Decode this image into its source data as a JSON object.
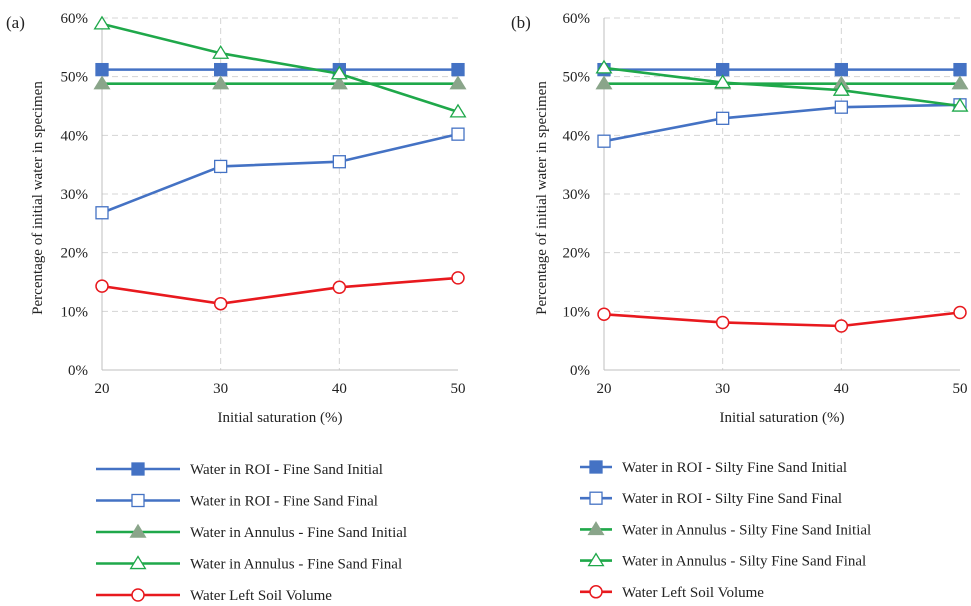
{
  "chart_data": [
    {
      "type": "line",
      "panel_label": "(a)",
      "xlabel": "Initial saturation (%)",
      "ylabel": "Percentage of initial water in specimen",
      "x": [
        20,
        30,
        40,
        50
      ],
      "xticks": [
        "20",
        "30",
        "40",
        "50"
      ],
      "ylim": [
        0,
        60
      ],
      "yticks": [
        "0%",
        "10%",
        "20%",
        "30%",
        "40%",
        "50%",
        "60%"
      ],
      "grid": true,
      "legend_position": "bottom",
      "series": [
        {
          "name": "Water in ROI - Fine Sand Initial",
          "color": "#4472C4",
          "marker": "square-filled",
          "values": [
            51.2,
            51.2,
            51.2,
            51.2
          ]
        },
        {
          "name": "Water in ROI - Fine Sand Final",
          "color": "#4472C4",
          "marker": "square-open",
          "values": [
            26.8,
            34.7,
            35.5,
            40.2
          ]
        },
        {
          "name": "Water in Annulus - Fine Sand Initial",
          "color": "#1FA84A",
          "marker": "triangle-filled",
          "values": [
            48.8,
            48.8,
            48.8,
            48.8
          ]
        },
        {
          "name": "Water in Annulus - Fine Sand Final",
          "color": "#1FA84A",
          "marker": "triangle-open",
          "values": [
            59.0,
            54.0,
            50.5,
            44.0
          ]
        },
        {
          "name": "Water Left Soil Volume",
          "color": "#E8191E",
          "marker": "circle-open",
          "values": [
            14.3,
            11.3,
            14.1,
            15.7
          ]
        }
      ]
    },
    {
      "type": "line",
      "panel_label": "(b)",
      "xlabel": "Initial saturation (%)",
      "ylabel": "Percentage of initial water in specimen",
      "x": [
        20,
        30,
        40,
        50
      ],
      "xticks": [
        "20",
        "30",
        "40",
        "50"
      ],
      "ylim": [
        0,
        60
      ],
      "yticks": [
        "0%",
        "10%",
        "20%",
        "30%",
        "40%",
        "50%",
        "60%"
      ],
      "grid": true,
      "legend_position": "bottom",
      "series": [
        {
          "name": "Water in ROI - Silty Fine Sand Initial",
          "color": "#4472C4",
          "marker": "square-filled",
          "values": [
            51.2,
            51.2,
            51.2,
            51.2
          ]
        },
        {
          "name": "Water in ROI - Silty Fine Sand Final",
          "color": "#4472C4",
          "marker": "square-open",
          "values": [
            39.0,
            42.9,
            44.8,
            45.2
          ]
        },
        {
          "name": "Water in Annulus - Silty Fine Sand Initial",
          "color": "#1FA84A",
          "marker": "triangle-filled",
          "values": [
            48.8,
            48.8,
            48.8,
            48.8
          ]
        },
        {
          "name": "Water in Annulus - Silty Fine Sand Final",
          "color": "#1FA84A",
          "marker": "triangle-open",
          "values": [
            51.5,
            49.0,
            47.7,
            45.0
          ]
        },
        {
          "name": "Water Left Soil Volume",
          "color": "#E8191E",
          "marker": "circle-open",
          "values": [
            9.5,
            8.1,
            7.5,
            9.8
          ]
        }
      ]
    }
  ]
}
